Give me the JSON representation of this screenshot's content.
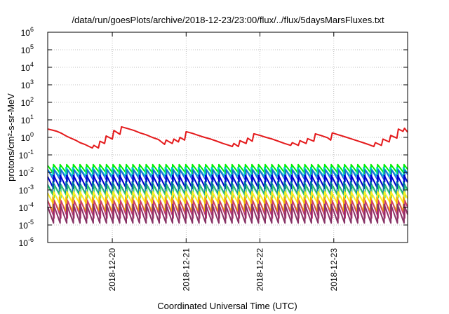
{
  "chart_data": {
    "type": "line",
    "title": "/data/run/goesPlots/archive/2018-12-23/23:00/flux/../flux/5daysMarsFluxes.txt",
    "xlabel": "Coordinated Universal Time (UTC)",
    "ylabel": "protons/cm²-s-sr-MeV",
    "yscale": "log",
    "ylim": [
      1e-06,
      1000000.0
    ],
    "xlim": [
      "2018-12-19 03:00",
      "2018-12-24 00:00"
    ],
    "grid": true,
    "y_ticks": [
      {
        "value": 1e-06,
        "base": "10",
        "exp": "-6"
      },
      {
        "value": 1e-05,
        "base": "10",
        "exp": "-5"
      },
      {
        "value": 0.0001,
        "base": "10",
        "exp": "-4"
      },
      {
        "value": 0.001,
        "base": "10",
        "exp": "-3"
      },
      {
        "value": 0.01,
        "base": "10",
        "exp": "-2"
      },
      {
        "value": 0.1,
        "base": "10",
        "exp": "-1"
      },
      {
        "value": 1,
        "base": "10",
        "exp": "0"
      },
      {
        "value": 10,
        "base": "10",
        "exp": "1"
      },
      {
        "value": 100,
        "base": "10",
        "exp": "2"
      },
      {
        "value": 1000,
        "base": "10",
        "exp": "3"
      },
      {
        "value": 10000,
        "base": "10",
        "exp": "4"
      },
      {
        "value": 100000,
        "base": "10",
        "exp": "5"
      },
      {
        "value": 1000000,
        "base": "10",
        "exp": "6"
      }
    ],
    "x_ticks": [
      {
        "label": "2018-12-20",
        "x": "2018-12-20 00:00"
      },
      {
        "label": "2018-12-21",
        "x": "2018-12-21 00:00"
      },
      {
        "label": "2018-12-22",
        "x": "2018-12-22 00:00"
      },
      {
        "label": "2018-12-23",
        "x": "2018-12-23 00:00"
      }
    ],
    "series": [
      {
        "color": "#e41a1c",
        "stroke": 2.0,
        "points": [
          [
            "2018-12-19 03:00",
            3.0
          ],
          [
            "2018-12-19 04:30",
            2.6
          ],
          [
            "2018-12-19 06:00",
            2.2
          ],
          [
            "2018-12-19 07:30",
            1.7
          ],
          [
            "2018-12-19 09:00",
            1.2
          ],
          [
            "2018-12-19 10:30",
            0.9
          ],
          [
            "2018-12-19 12:00",
            0.7
          ],
          [
            "2018-12-19 13:30",
            0.5
          ],
          [
            "2018-12-19 15:00",
            0.4
          ],
          [
            "2018-12-19 16:30",
            0.3
          ],
          [
            "2018-12-19 17:30",
            0.25
          ],
          [
            "2018-12-19 18:00",
            0.35
          ],
          [
            "2018-12-19 19:30",
            0.25
          ],
          [
            "2018-12-19 20:00",
            0.6
          ],
          [
            "2018-12-19 21:30",
            0.45
          ],
          [
            "2018-12-19 22:00",
            1.2
          ],
          [
            "2018-12-20 00:00",
            0.8
          ],
          [
            "2018-12-20 00:30",
            2.5
          ],
          [
            "2018-12-20 02:30",
            1.5
          ],
          [
            "2018-12-20 03:00",
            4.0
          ],
          [
            "2018-12-20 05:00",
            3.2
          ],
          [
            "2018-12-20 07:00",
            2.5
          ],
          [
            "2018-12-20 09:00",
            1.8
          ],
          [
            "2018-12-20 11:00",
            1.4
          ],
          [
            "2018-12-20 13:00",
            1.0
          ],
          [
            "2018-12-20 15:00",
            0.75
          ],
          [
            "2018-12-20 16:00",
            0.55
          ],
          [
            "2018-12-20 17:00",
            0.4
          ],
          [
            "2018-12-20 17:30",
            0.7
          ],
          [
            "2018-12-20 19:30",
            0.45
          ],
          [
            "2018-12-20 20:00",
            0.8
          ],
          [
            "2018-12-20 21:30",
            0.55
          ],
          [
            "2018-12-20 22:00",
            1.0
          ],
          [
            "2018-12-20 23:30",
            0.7
          ],
          [
            "2018-12-21 00:00",
            2.1
          ],
          [
            "2018-12-21 02:00",
            1.7
          ],
          [
            "2018-12-21 04:00",
            1.3
          ],
          [
            "2018-12-21 06:00",
            1.0
          ],
          [
            "2018-12-21 08:00",
            0.8
          ],
          [
            "2018-12-21 10:00",
            0.6
          ],
          [
            "2018-12-21 12:00",
            0.45
          ],
          [
            "2018-12-21 14:00",
            0.35
          ],
          [
            "2018-12-21 15:00",
            0.3
          ],
          [
            "2018-12-21 15:30",
            0.45
          ],
          [
            "2018-12-21 17:00",
            0.3
          ],
          [
            "2018-12-21 17:30",
            0.65
          ],
          [
            "2018-12-21 19:30",
            0.45
          ],
          [
            "2018-12-21 20:00",
            0.9
          ],
          [
            "2018-12-21 21:30",
            0.6
          ],
          [
            "2018-12-21 22:00",
            1.6
          ],
          [
            "2018-12-22 00:00",
            1.3
          ],
          [
            "2018-12-22 02:00",
            1.0
          ],
          [
            "2018-12-22 04:00",
            0.8
          ],
          [
            "2018-12-22 06:00",
            0.6
          ],
          [
            "2018-12-22 08:00",
            0.45
          ],
          [
            "2018-12-22 10:00",
            0.35
          ],
          [
            "2018-12-22 10:30",
            0.5
          ],
          [
            "2018-12-22 12:30",
            0.35
          ],
          [
            "2018-12-22 13:00",
            0.65
          ],
          [
            "2018-12-22 15:00",
            0.45
          ],
          [
            "2018-12-22 15:30",
            0.85
          ],
          [
            "2018-12-22 17:30",
            0.6
          ],
          [
            "2018-12-22 18:00",
            1.6
          ],
          [
            "2018-12-22 20:00",
            1.25
          ],
          [
            "2018-12-22 22:00",
            0.95
          ],
          [
            "2018-12-22 23:00",
            0.7
          ],
          [
            "2018-12-22 23:30",
            1.8
          ],
          [
            "2018-12-23 01:30",
            1.4
          ],
          [
            "2018-12-23 03:30",
            1.1
          ],
          [
            "2018-12-23 05:30",
            0.85
          ],
          [
            "2018-12-23 07:30",
            0.65
          ],
          [
            "2018-12-23 09:30",
            0.5
          ],
          [
            "2018-12-23 11:30",
            0.38
          ],
          [
            "2018-12-23 13:00",
            0.3
          ],
          [
            "2018-12-23 13:30",
            0.5
          ],
          [
            "2018-12-23 15:30",
            0.35
          ],
          [
            "2018-12-23 16:00",
            0.8
          ],
          [
            "2018-12-23 18:00",
            0.55
          ],
          [
            "2018-12-23 18:30",
            1.3
          ],
          [
            "2018-12-23 20:30",
            0.9
          ],
          [
            "2018-12-23 21:00",
            3.0
          ],
          [
            "2018-12-23 22:30",
            2.2
          ],
          [
            "2018-12-23 23:00",
            3.3
          ],
          [
            "2018-12-24 00:00",
            2.0
          ]
        ]
      },
      {
        "color": "#00ee00",
        "stroke": 2.0,
        "period_hours": 2.15,
        "start": "2018-12-19 03:00",
        "peak": 0.028,
        "trough": 0.009
      },
      {
        "color": "#00cccc",
        "stroke": 1.6,
        "period_hours": 2.15,
        "start": "2018-12-19 03:00",
        "peak": 0.02,
        "trough": 0.006
      },
      {
        "color": "#1f5fe0",
        "stroke": 1.6,
        "period_hours": 2.15,
        "start": "2018-12-19 03:00",
        "peak": 0.014,
        "trough": 0.003
      },
      {
        "color": "#0000cc",
        "stroke": 2.0,
        "period_hours": 2.15,
        "start": "2018-12-19 03:00",
        "peak": 0.007,
        "trough": 0.0012
      },
      {
        "color": "#0080a0",
        "stroke": 1.6,
        "period_hours": 2.15,
        "start": "2018-12-19 03:00",
        "peak": 0.003,
        "trough": 0.0006
      },
      {
        "color": "#33cc66",
        "stroke": 1.6,
        "period_hours": 2.15,
        "start": "2018-12-19 03:00",
        "peak": 0.0018,
        "trough": 0.00035
      },
      {
        "color": "#ffee22",
        "stroke": 2.0,
        "period_hours": 2.15,
        "start": "2018-12-19 03:00",
        "peak": 0.0008,
        "trough": 0.00015
      },
      {
        "color": "#eeaa00",
        "stroke": 1.6,
        "period_hours": 2.15,
        "start": "2018-12-19 03:00",
        "peak": 0.0004,
        "trough": 6e-05
      },
      {
        "color": "#cc3377",
        "stroke": 1.6,
        "period_hours": 2.15,
        "start": "2018-12-19 03:00",
        "peak": 0.00025,
        "trough": 2.5e-05
      },
      {
        "color": "#883366",
        "stroke": 2.0,
        "period_hours": 2.15,
        "start": "2018-12-19 03:00",
        "peak": 0.00015,
        "trough": 1.3e-05
      }
    ]
  }
}
